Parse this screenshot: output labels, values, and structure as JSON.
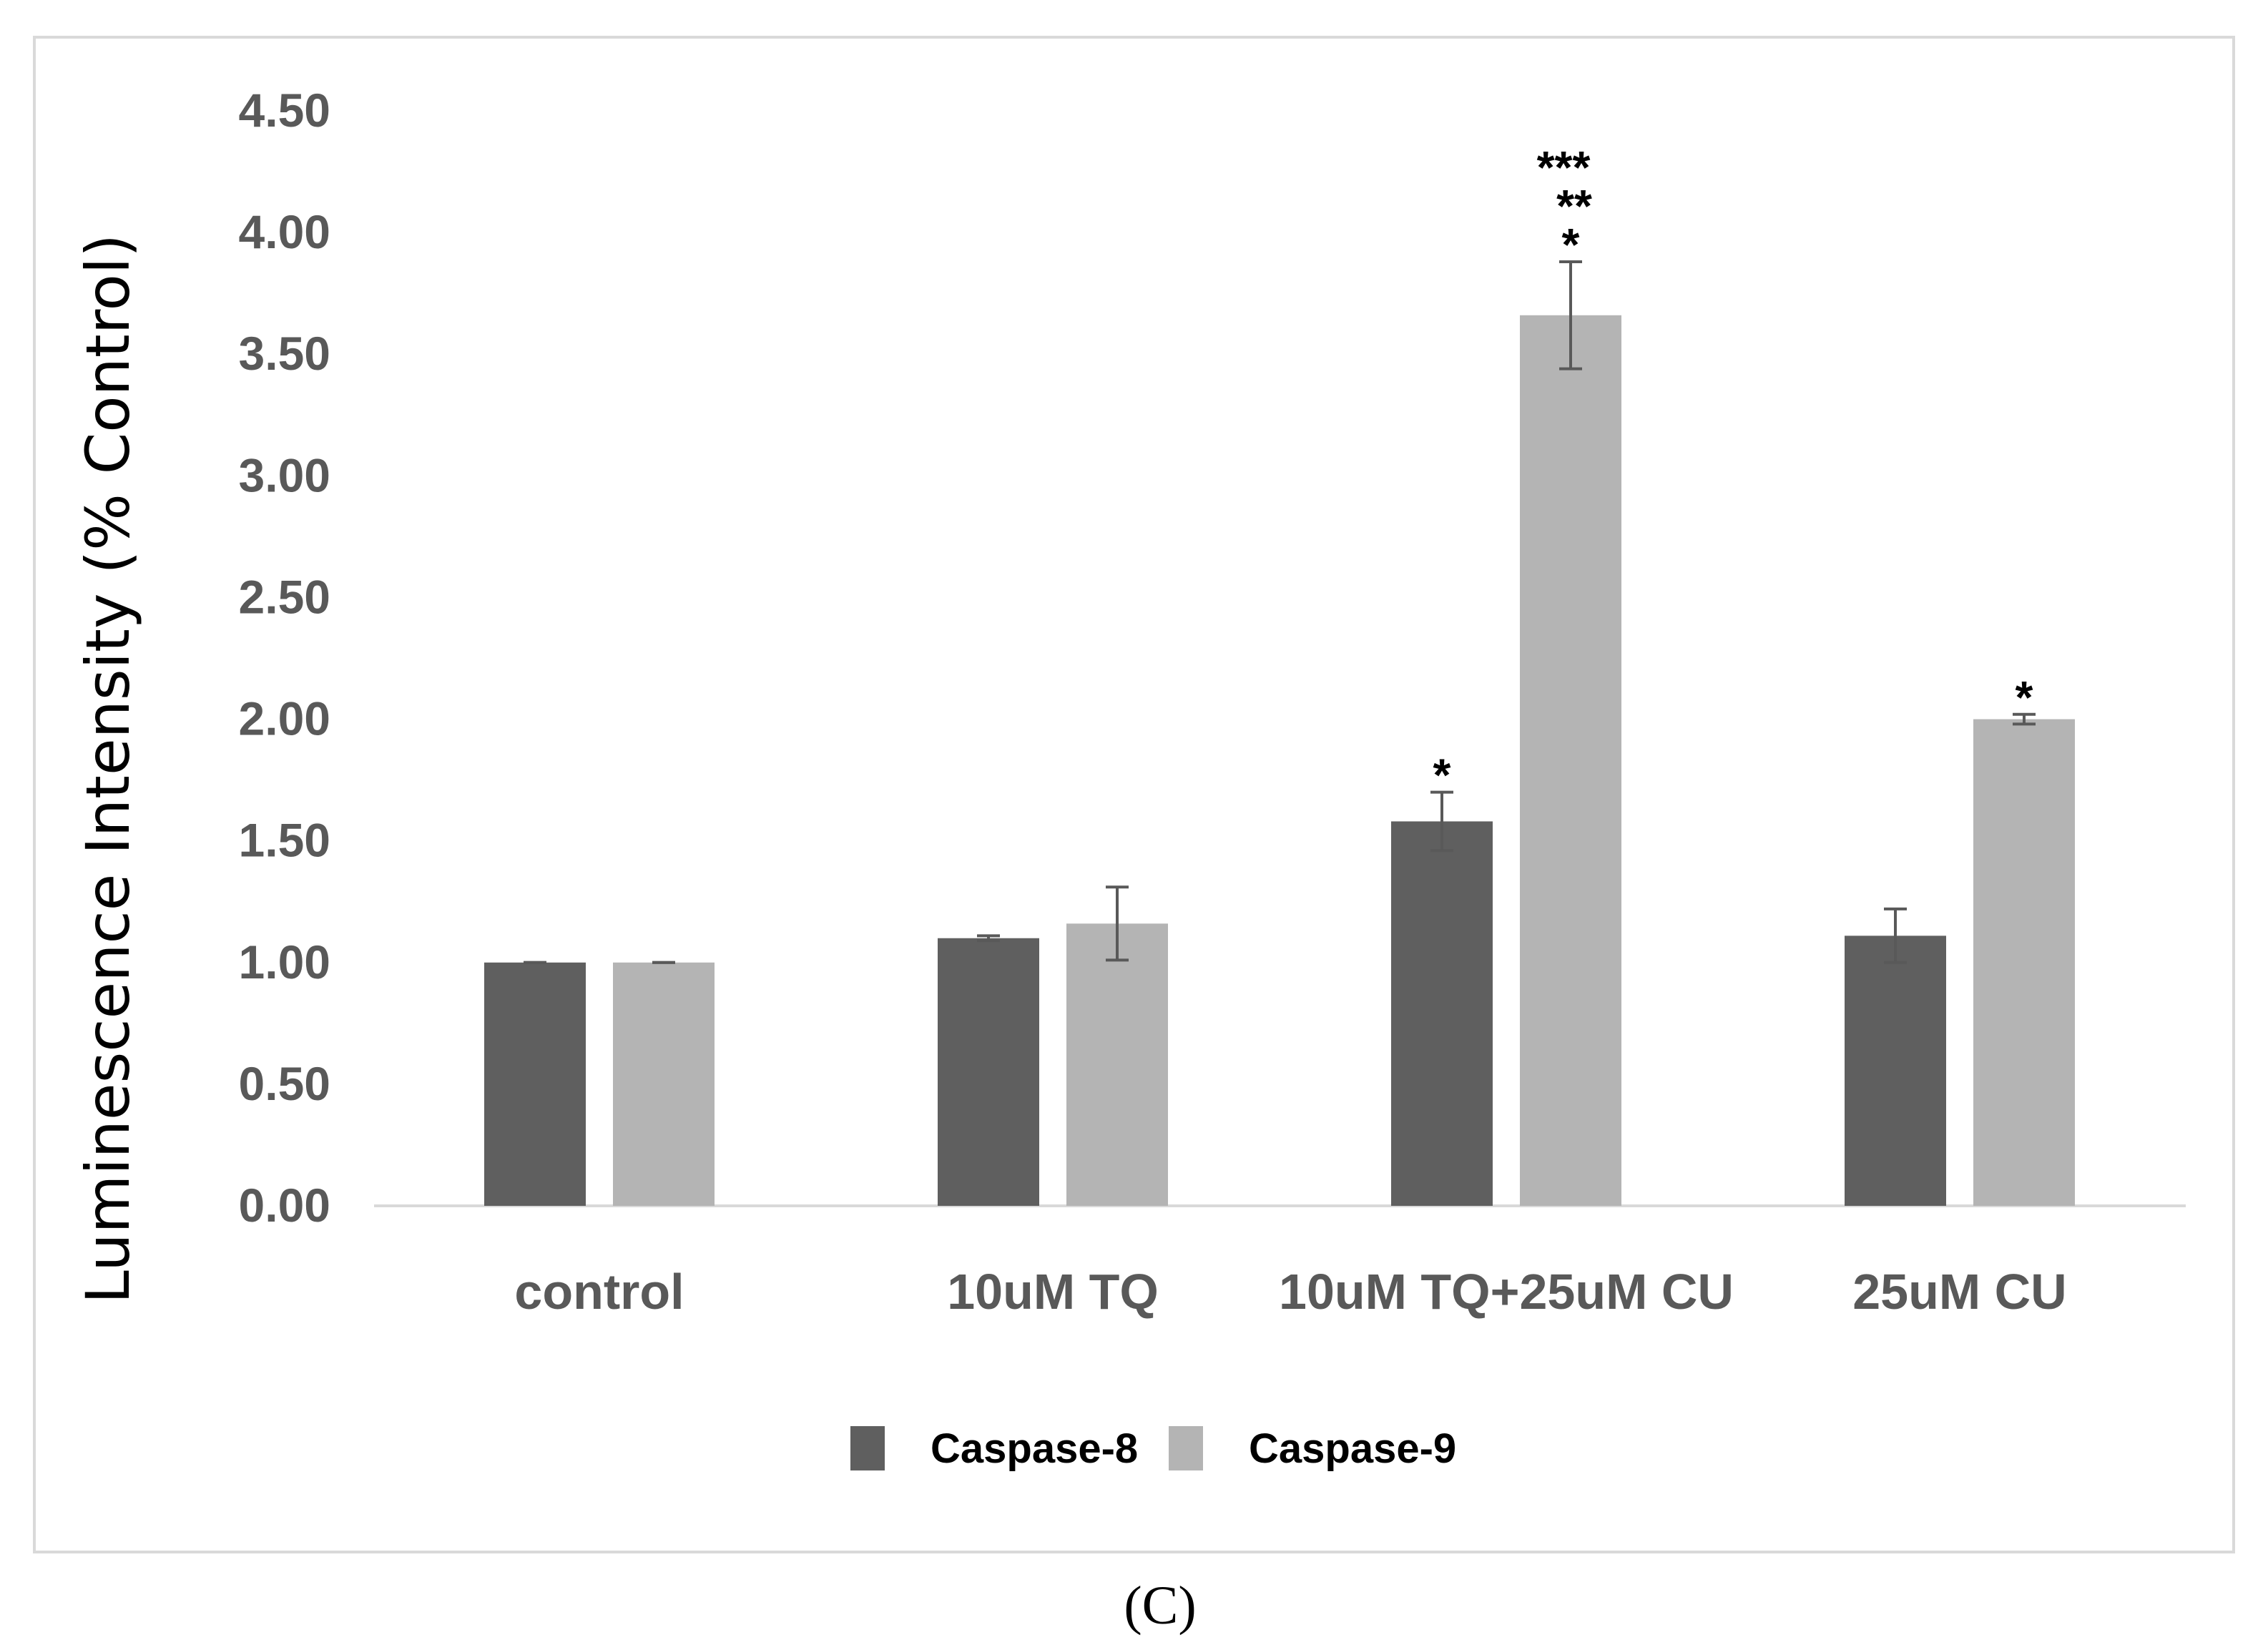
{
  "chart_data": {
    "type": "bar",
    "title": "",
    "xlabel": "",
    "ylabel": "Luminescence Intensity (% Control)",
    "ylim": [
      0,
      4.5
    ],
    "yticks": [
      "0.00",
      "0.50",
      "1.00",
      "1.50",
      "2.00",
      "2.50",
      "3.00",
      "3.50",
      "4.00",
      "4.50"
    ],
    "grid": false,
    "legend_position": "bottom-center",
    "categories": [
      "control",
      "10uM TQ",
      "10uM TQ+25uM CU",
      "25uM CU"
    ],
    "series": [
      {
        "name": "Caspase-8",
        "color": "#5f5f5f",
        "values": [
          1.0,
          1.1,
          1.58,
          1.11
        ],
        "errors": [
          0.0,
          0.01,
          0.12,
          0.11
        ],
        "significance": [
          "",
          "",
          "*",
          ""
        ]
      },
      {
        "name": "Caspase-9",
        "color": "#b4b4b4",
        "values": [
          1.0,
          1.16,
          3.66,
          2.0
        ],
        "errors": [
          0.0,
          0.15,
          0.22,
          0.02
        ],
        "significance": [
          "",
          "",
          "***\n**\n*",
          "*"
        ]
      }
    ],
    "panel_label": "(C)"
  }
}
